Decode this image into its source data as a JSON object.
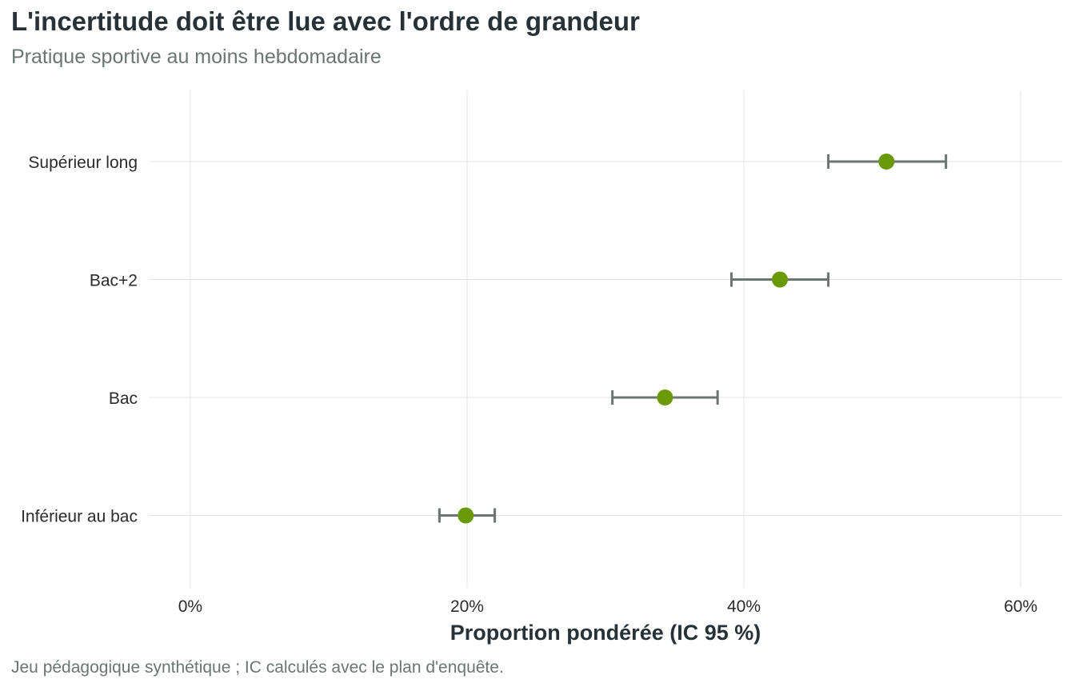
{
  "chart_data": {
    "type": "dot-errorbar",
    "title": "L'incertitude doit être lue avec l'ordre de grandeur",
    "subtitle": "Pratique sportive au moins hebdomadaire",
    "xlabel": "Proportion pondérée (IC 95 %)",
    "ylabel": "",
    "caption": "Jeu pédagogique synthétique ; IC calculés avec le plan d'enquête.",
    "xlim": [
      -0.03,
      0.63
    ],
    "xticks": [
      0,
      0.2,
      0.4,
      0.6
    ],
    "xtick_labels": [
      "0%",
      "20%",
      "40%",
      "60%"
    ],
    "grid": true,
    "categories": [
      "Supérieur long",
      "Bac+2",
      "Bac",
      "Inférieur au bac"
    ],
    "values": [
      0.503,
      0.426,
      0.343,
      0.199
    ],
    "ci_low": [
      0.461,
      0.391,
      0.305,
      0.18
    ],
    "ci_high": [
      0.546,
      0.461,
      0.381,
      0.22
    ],
    "colors": {
      "point": "#6a9a0a",
      "errorbar": "#6b7573",
      "grid": "#e5e5e5"
    }
  }
}
